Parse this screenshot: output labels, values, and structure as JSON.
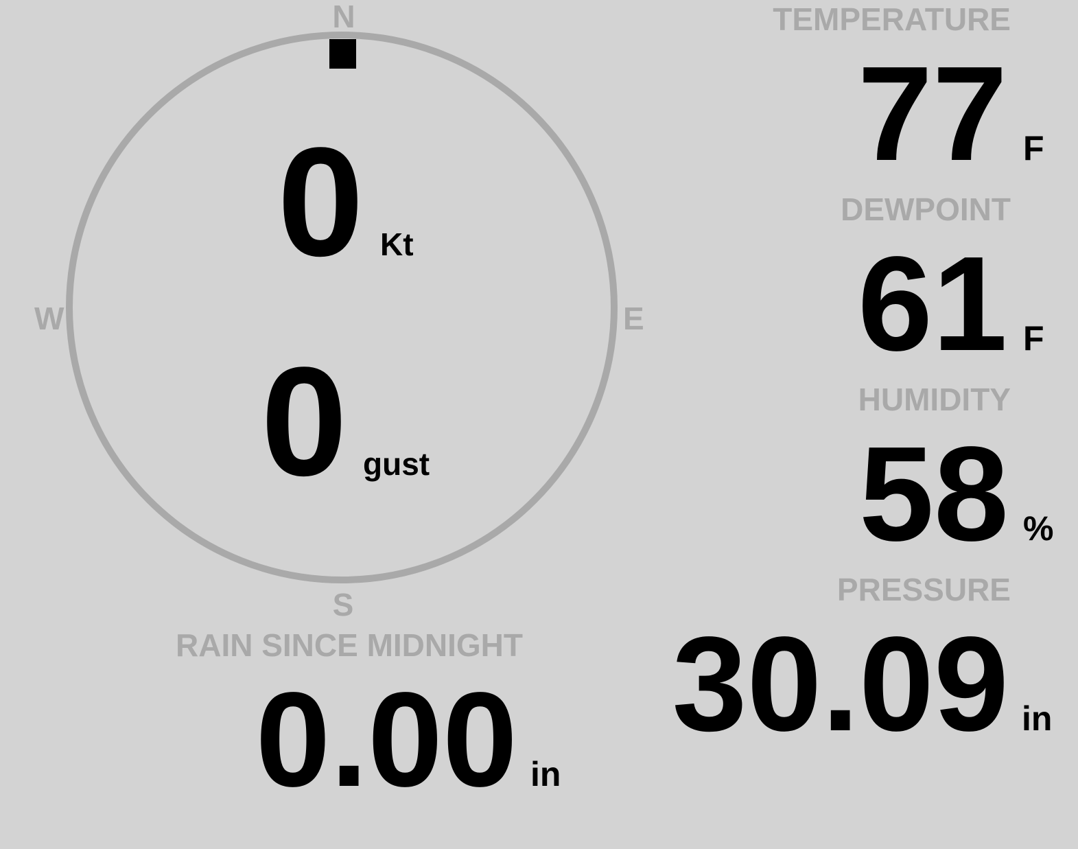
{
  "colors": {
    "background": "#d3d3d3",
    "label": "#a9a9a9",
    "value": "#000000"
  },
  "compass": {
    "directions": {
      "n": "N",
      "e": "E",
      "s": "S",
      "w": "W"
    },
    "wind_direction_deg": 0,
    "wind_speed": "0",
    "wind_speed_unit": "Kt",
    "gust": "0",
    "gust_unit": "gust"
  },
  "temperature": {
    "label": "TEMPERATURE",
    "value": "77",
    "unit": "F"
  },
  "dewpoint": {
    "label": "DEWPOINT",
    "value": "61",
    "unit": "F"
  },
  "humidity": {
    "label": "HUMIDITY",
    "value": "58",
    "unit": "%"
  },
  "rain": {
    "label": "RAIN SINCE MIDNIGHT",
    "value": "0.00",
    "unit": "in"
  },
  "pressure": {
    "label": "PRESSURE",
    "value": "30.09",
    "unit": "in"
  }
}
